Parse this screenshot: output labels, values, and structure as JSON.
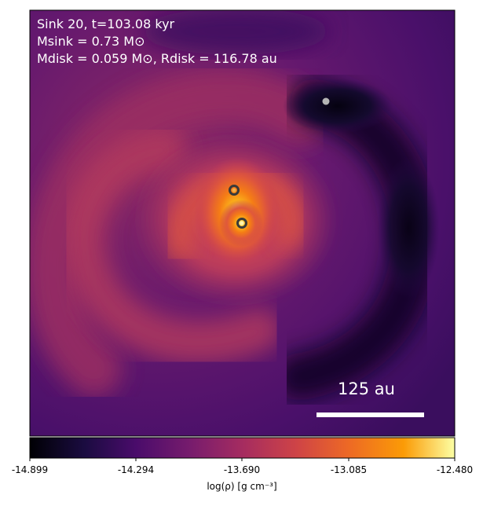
{
  "annotation": {
    "line1": "Sink 20, t=103.08 kyr",
    "line2": "Msink = 0.73 M⊙",
    "line3": "Mdisk = 0.059 M⊙, Rdisk = 116.78 au"
  },
  "scale_bar": {
    "label": "125 au"
  },
  "colorbar": {
    "label": "log(ρ) [g cm⁻³]",
    "ticks": [
      "-14.899",
      "-14.294",
      "-13.690",
      "-13.085",
      "-12.480"
    ],
    "colormap": "inferno"
  },
  "sinks": [
    {
      "kind": "ring"
    },
    {
      "kind": "ring"
    },
    {
      "kind": "dot"
    }
  ]
}
